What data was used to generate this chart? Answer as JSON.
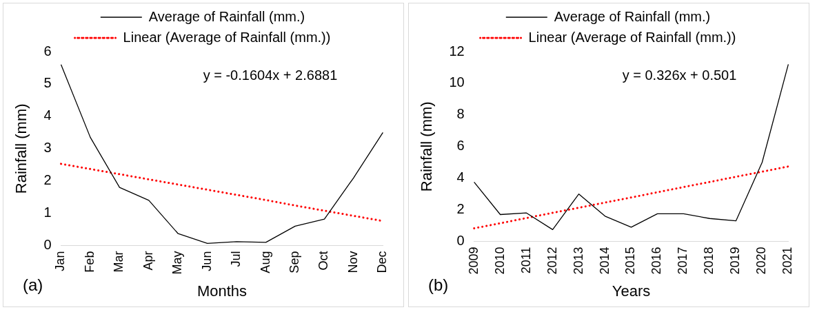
{
  "chart_data": [
    {
      "type": "line",
      "xlabel": "Months",
      "ylabel": "Rainfall (mm)",
      "categories": [
        "Jan",
        "Feb",
        "Mar",
        "Apr",
        "May",
        "Jun",
        "Jul",
        "Aug",
        "Sep",
        "Oct",
        "Nov",
        "Dec"
      ],
      "series": [
        {
          "name": "Average of Rainfall (mm.)",
          "color": "#000000",
          "line_style": "solid",
          "values": [
            5.6,
            3.35,
            1.8,
            1.4,
            0.37,
            0.07,
            0.12,
            0.1,
            0.6,
            0.82,
            2.1,
            3.5
          ]
        },
        {
          "name": "Linear (Average of Rainfall (mm.))",
          "color": "#ff0000",
          "line_style": "dotted",
          "values": [
            2.53,
            2.37,
            2.21,
            2.05,
            1.89,
            1.73,
            1.57,
            1.41,
            1.24,
            1.08,
            0.92,
            0.76
          ]
        }
      ],
      "ylim": [
        0,
        6
      ],
      "yticks": [
        0,
        1,
        2,
        3,
        4,
        5,
        6
      ],
      "grid": false,
      "legend": "top",
      "marker": "none",
      "annotations": [
        "y = -0.1604x + 2.6881",
        "(a)"
      ]
    },
    {
      "type": "line",
      "xlabel": "Years",
      "ylabel": "Rainfall (mm)",
      "categories": [
        "2009",
        "2010",
        "2011",
        "2012",
        "2013",
        "2014",
        "2015",
        "2016",
        "2017",
        "2018",
        "2019",
        "2020",
        "2021"
      ],
      "series": [
        {
          "name": "Average of Rainfall (mm.)",
          "color": "#000000",
          "line_style": "solid",
          "values": [
            3.75,
            1.7,
            1.8,
            0.75,
            3.0,
            1.6,
            0.9,
            1.75,
            1.75,
            1.45,
            1.3,
            5.0,
            11.2
          ]
        },
        {
          "name": "Linear (Average of Rainfall (mm.))",
          "color": "#ff0000",
          "line_style": "dotted",
          "values": [
            0.83,
            1.15,
            1.48,
            1.81,
            2.13,
            2.46,
            2.78,
            3.11,
            3.44,
            3.76,
            4.09,
            4.41,
            4.74
          ]
        }
      ],
      "ylim": [
        0,
        12
      ],
      "yticks": [
        0,
        2,
        4,
        6,
        8,
        10,
        12
      ],
      "grid": false,
      "legend": "top",
      "marker": "none",
      "annotations": [
        "y = 0.326x + 0.501",
        "(b)"
      ]
    }
  ]
}
